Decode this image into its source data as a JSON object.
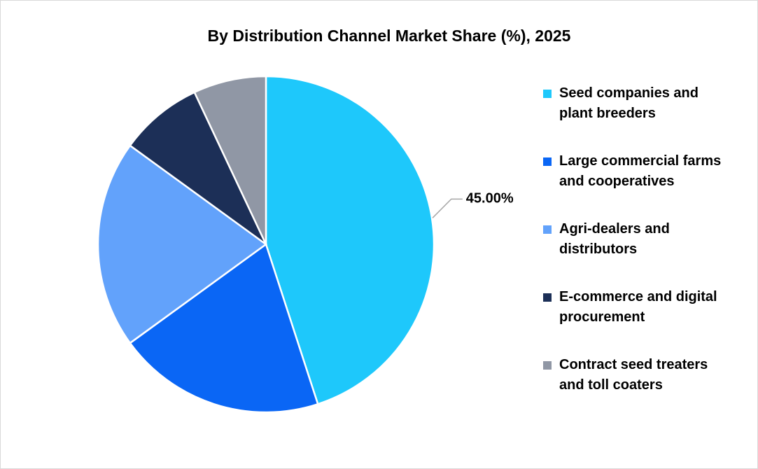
{
  "chart_data": {
    "type": "pie",
    "title": "By Distribution Channel Market Share (%), 2025",
    "categories": [
      "Seed companies and plant breeders",
      "Large commercial farms and cooperatives",
      "Agri-dealers and distributors",
      "E-commerce and digital procurement",
      "Contract seed treaters and toll coaters"
    ],
    "values": [
      45,
      20,
      20,
      8,
      7
    ],
    "value_labels": [
      "45.00%",
      null,
      null,
      null,
      null
    ],
    "colors": [
      "#1ec8fb",
      "#0a66f5",
      "#62a2fb",
      "#1c2f57",
      "#9097a5"
    ],
    "legend": "right"
  }
}
